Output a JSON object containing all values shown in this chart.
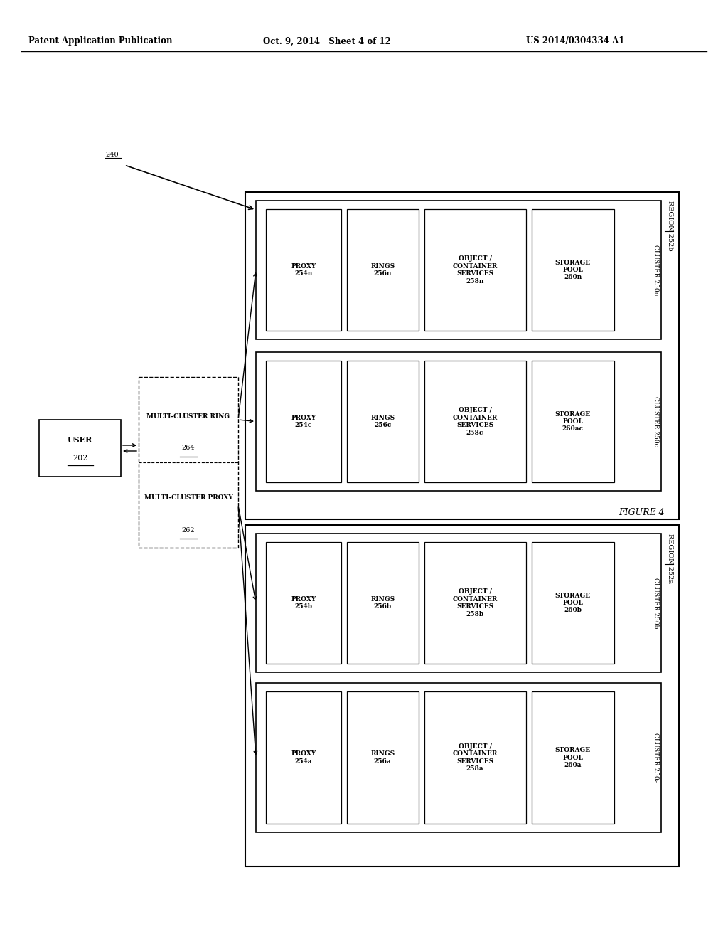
{
  "header_left": "Patent Application Publication",
  "header_mid": "Oct. 9, 2014   Sheet 4 of 12",
  "header_right": "US 2014/0304334 A1",
  "figure_label": "FIGURE 4",
  "ref_240": "240",
  "user_label": "USER",
  "ref_202": "202",
  "mc_proxy_label": "MULTI-CLUSTER PROXY",
  "mc_proxy_ref": "262",
  "mc_ring_label": "MULTI-CLUSTER RING",
  "mc_ring_ref": "264",
  "region_a_label": "REGION 252a",
  "region_b_label": "REGION 252b",
  "clusters": [
    {
      "label": "CLUSTER 250a",
      "proxy": "PROXY\n254a",
      "rings": "RINGS\n256a",
      "obj": "OBJECT /\nCONTAINER\nSERVICES\n258a",
      "storage": "STORAGE\nPOOL\n260a"
    },
    {
      "label": "CLUSTER 250b",
      "proxy": "PROXY\n254b",
      "rings": "RINGS\n256b",
      "obj": "OBJECT /\nCONTAINER\nSERVICES\n258b",
      "storage": "STORAGE\nPOOL\n260b"
    },
    {
      "label": "CLUSTER 250c",
      "proxy": "PROXY\n254c",
      "rings": "RINGS\n256c",
      "obj": "OBJECT /\nCONTAINER\nSERVICES\n258c",
      "storage": "STORAGE\nPOOL\n260ac"
    },
    {
      "label": "CLUSTER 250n",
      "proxy": "PROXY\n254n",
      "rings": "RINGS\n256n",
      "obj": "OBJECT /\nCONTAINER\nSERVICES\n258n",
      "storage": "STORAGE\nPOOL\n260n"
    }
  ],
  "bg_color": "#ffffff"
}
